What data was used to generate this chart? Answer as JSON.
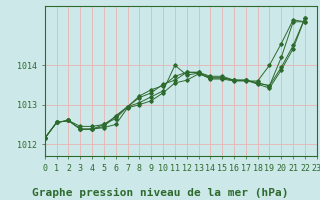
{
  "bg_color": "#cce8e8",
  "grid_color": "#e8b4b4",
  "line_color": "#2d6a2d",
  "title": "Graphe pression niveau de la mer (hPa)",
  "xlim": [
    0,
    23
  ],
  "ylim": [
    1011.7,
    1015.5
  ],
  "yticks": [
    1012,
    1013,
    1014
  ],
  "xticks": [
    0,
    1,
    2,
    3,
    4,
    5,
    6,
    7,
    8,
    9,
    10,
    11,
    12,
    13,
    14,
    15,
    16,
    17,
    18,
    19,
    20,
    21,
    22,
    23
  ],
  "series": [
    [
      1012.15,
      1012.55,
      1012.6,
      1012.45,
      1012.45,
      1012.5,
      1012.65,
      1012.95,
      1013.05,
      1013.2,
      1013.35,
      1014.0,
      1013.75,
      1013.8,
      1013.65,
      1013.65,
      1013.6,
      1013.6,
      1013.6,
      1014.0,
      1014.55,
      1015.15,
      1015.1
    ],
    [
      1012.15,
      1012.55,
      1012.6,
      1012.38,
      1012.38,
      1012.42,
      1012.5,
      1012.92,
      1013.0,
      1013.1,
      1013.3,
      1013.55,
      1013.62,
      1013.78,
      1013.68,
      1013.68,
      1013.62,
      1013.62,
      1013.55,
      1013.48,
      1014.2,
      1015.1,
      1015.1
    ],
    [
      1012.15,
      1012.55,
      1012.6,
      1012.38,
      1012.38,
      1012.5,
      1012.7,
      1012.95,
      1013.18,
      1013.3,
      1013.52,
      1013.62,
      1013.82,
      1013.82,
      1013.68,
      1013.68,
      1013.62,
      1013.62,
      1013.55,
      1013.48,
      1013.95,
      1014.5,
      1015.2
    ],
    [
      1012.15,
      1012.55,
      1012.6,
      1012.38,
      1012.38,
      1012.45,
      1012.72,
      1012.95,
      1013.22,
      1013.38,
      1013.48,
      1013.72,
      1013.82,
      1013.82,
      1013.72,
      1013.72,
      1013.62,
      1013.62,
      1013.52,
      1013.42,
      1013.88,
      1014.42,
      1015.2
    ]
  ],
  "title_fontsize": 8,
  "tick_fontsize": 6,
  "title_color": "#2d6a2d",
  "tick_color": "#2d6a2d",
  "spine_color": "#2d6a2d"
}
